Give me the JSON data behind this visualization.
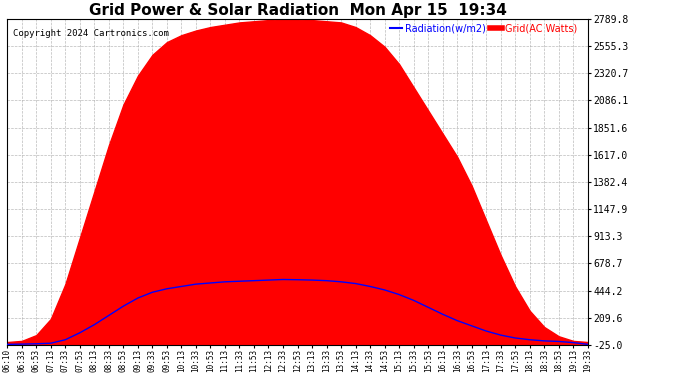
{
  "title": "Grid Power & Solar Radiation  Mon Apr 15  19:34",
  "copyright": "Copyright 2024 Cartronics.com",
  "legend_radiation": "Radiation(w/m2)",
  "legend_grid": "Grid(AC Watts)",
  "yticks": [
    2789.8,
    2555.3,
    2320.7,
    2086.1,
    1851.6,
    1617.0,
    1382.4,
    1147.9,
    913.3,
    678.7,
    444.2,
    209.6,
    -25.0
  ],
  "ymin": -25.0,
  "ymax": 2789.8,
  "background_color": "#ffffff",
  "plot_bg_color": "#ffffff",
  "grid_color": "#aaaaaa",
  "fill_color": "#ff0000",
  "line_color_blue": "#0000ff",
  "line_color_red": "#ff0000",
  "x_labels": [
    "06:10",
    "06:33",
    "06:53",
    "07:13",
    "07:33",
    "07:53",
    "08:13",
    "08:33",
    "08:53",
    "09:13",
    "09:33",
    "09:53",
    "10:13",
    "10:33",
    "10:53",
    "11:13",
    "11:33",
    "11:53",
    "12:13",
    "12:33",
    "12:53",
    "13:13",
    "13:33",
    "13:53",
    "14:13",
    "14:33",
    "14:53",
    "15:13",
    "15:33",
    "15:53",
    "16:13",
    "16:33",
    "16:53",
    "17:13",
    "17:33",
    "17:53",
    "18:13",
    "18:33",
    "18:53",
    "19:13",
    "19:33"
  ],
  "rad_values": [
    0,
    10,
    60,
    200,
    500,
    900,
    1300,
    1700,
    2050,
    2300,
    2480,
    2590,
    2650,
    2690,
    2720,
    2740,
    2760,
    2770,
    2780,
    2789,
    2785,
    2780,
    2770,
    2760,
    2720,
    2650,
    2550,
    2400,
    2200,
    2000,
    1800,
    1600,
    1350,
    1050,
    750,
    480,
    270,
    130,
    50,
    10,
    0
  ],
  "grid_values": [
    -20,
    -18,
    -15,
    -10,
    20,
    80,
    150,
    230,
    310,
    380,
    430,
    460,
    480,
    500,
    510,
    520,
    525,
    530,
    535,
    540,
    538,
    535,
    530,
    520,
    505,
    480,
    450,
    410,
    360,
    300,
    240,
    185,
    140,
    95,
    60,
    35,
    20,
    10,
    5,
    -5,
    -20
  ]
}
